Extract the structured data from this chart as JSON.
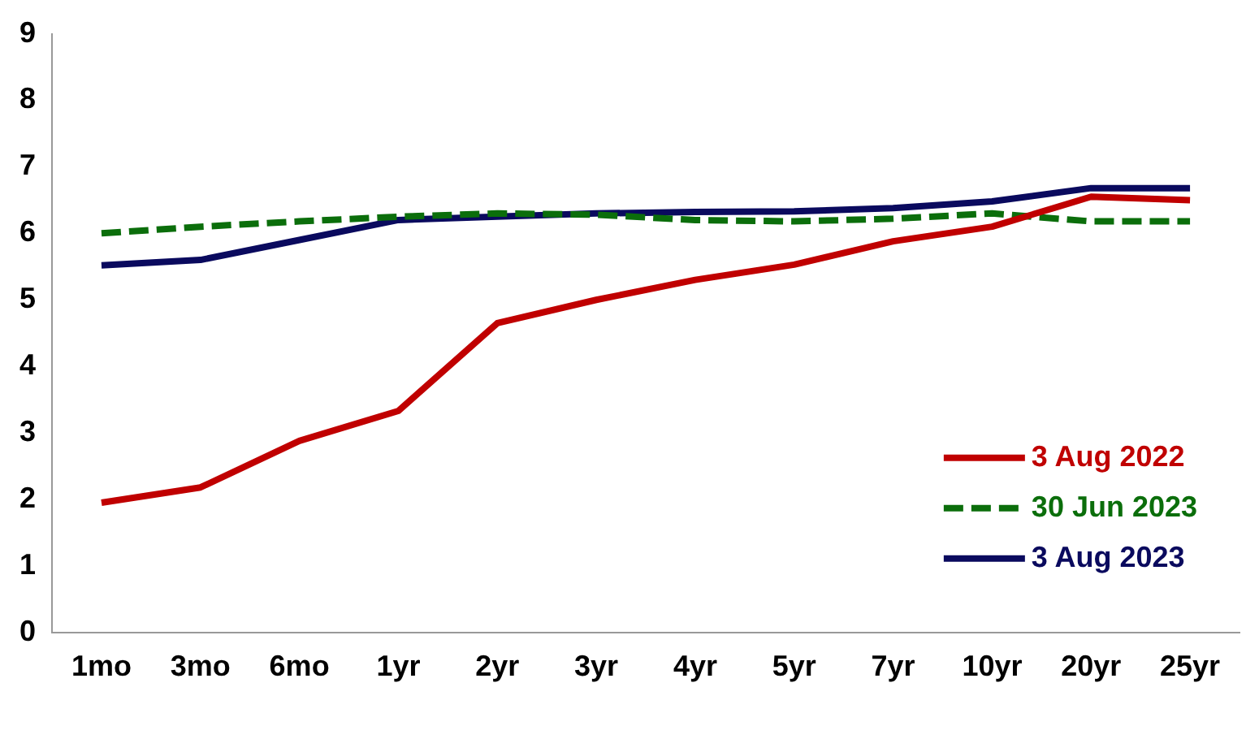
{
  "chart_data": {
    "type": "line",
    "categories": [
      "1mo",
      "3mo",
      "6mo",
      "1yr",
      "2yr",
      "3yr",
      "4yr",
      "5yr",
      "7yr",
      "10yr",
      "20yr",
      "25yr"
    ],
    "series": [
      {
        "name": "3 Aug 2022",
        "color": "#c00000",
        "values": [
          1.95,
          2.18,
          2.88,
          3.33,
          4.65,
          5.0,
          5.3,
          5.53,
          5.88,
          6.1,
          6.55,
          6.5
        ]
      },
      {
        "name": "30 Jun 2023",
        "color": "#0b6e0b",
        "line_style": "dashed",
        "values": [
          6.0,
          6.1,
          6.18,
          6.25,
          6.3,
          6.28,
          6.2,
          6.18,
          6.22,
          6.3,
          6.18,
          6.18
        ]
      },
      {
        "name": "3 Aug 2023",
        "color": "#0a0a5e",
        "values": [
          5.52,
          5.6,
          5.9,
          6.2,
          6.25,
          6.3,
          6.32,
          6.33,
          6.38,
          6.48,
          6.68,
          6.68
        ]
      }
    ],
    "ylim": [
      0,
      9
    ],
    "yticks": [
      0,
      1,
      2,
      3,
      4,
      5,
      6,
      7,
      8,
      9
    ],
    "grid": false,
    "legend": "bottom right",
    "marker": "none",
    "line_style": "solid"
  }
}
